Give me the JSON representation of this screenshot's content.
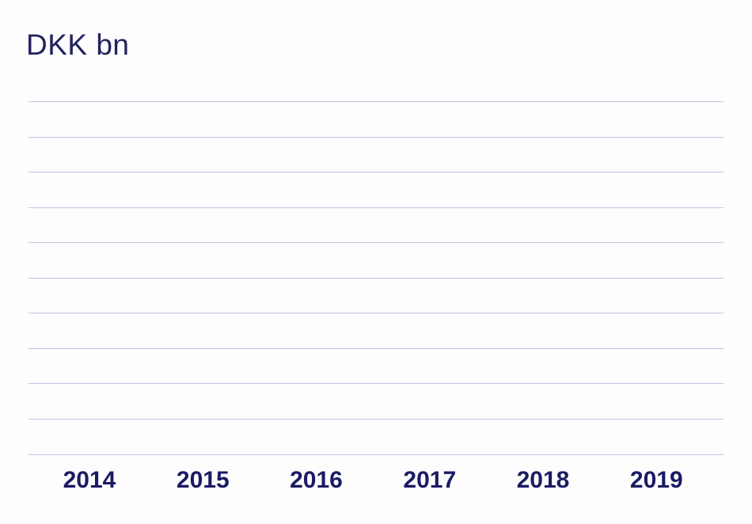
{
  "chart": {
    "title": "DKK bn"
  },
  "chart_data": {
    "type": "bar",
    "title": "DKK bn",
    "categories": [
      "2014",
      "2015",
      "2016",
      "2017",
      "2018",
      "2019"
    ],
    "series": [],
    "values": [],
    "xlabel": "",
    "ylabel": "DKK bn",
    "y_tick_labels": [],
    "layout": {
      "grid": true,
      "gridline_count": 11,
      "legend": "none",
      "plot_state": "empty - no data series rendered"
    }
  },
  "colors": {
    "title_text": "#22225e",
    "tick_label_text": "#1b1b64",
    "gridline": "#c5c3de",
    "background": "#fdfdfe"
  }
}
